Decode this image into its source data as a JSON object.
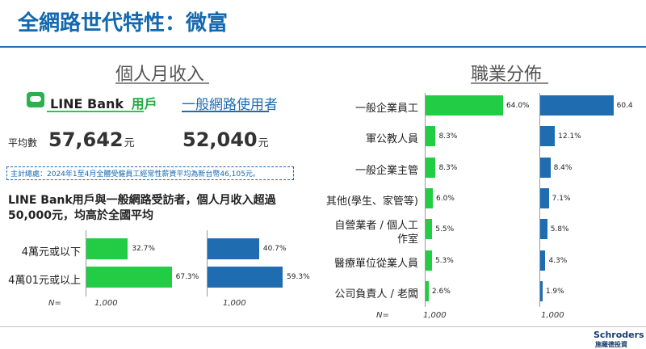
{
  "page": {
    "title": "全網路世代特性：微富",
    "left_section_title": "個人月收入",
    "right_section_title": "職業分佈",
    "line_bank_label": "LINE Bank",
    "line_bank_suffix": "用戶",
    "general_users_label": "一般網路使用者",
    "avg_label": "平均數",
    "line_bank_avg": "57,642",
    "general_avg": "52,040",
    "unit": "元",
    "note": "主計總處：2024年1至4月全體受僱員工經常性薪資平均為新台幣46,105元。",
    "summary": "LINE  Bank用戶與一般網路受訪者，個人月收入超過50,000元，均高於全國平均",
    "n_prefix": "N=",
    "n_line_bank": "1,000",
    "n_general": "1,000",
    "logo_en": "Schroders",
    "logo_zh": "施羅德投資"
  },
  "colors": {
    "line_bank": "#22cc44",
    "general": "#1f6cb0",
    "title": "#1368b0"
  },
  "chart_data": [
    {
      "type": "bar",
      "orientation": "horizontal",
      "categories": [
        "4萬元或以下",
        "4萬01元或以上"
      ],
      "series": [
        {
          "values": [
            32.7,
            67.3
          ],
          "labels": [
            "32.7%",
            "67.3%"
          ],
          "color": "#22cc44"
        },
        {
          "values": [
            40.7,
            59.3
          ],
          "labels": [
            "40.7%",
            "59.3%"
          ],
          "color": "#1f6cb0"
        }
      ]
    },
    {
      "type": "bar",
      "orientation": "horizontal",
      "categories": [
        "一般企業員工",
        "軍公教人員",
        "一般企業主管",
        "其他(學生、家管等)",
        "自營業者 / 個人工作室",
        "醫療單位從業人員",
        "公司負責人 / 老闆"
      ],
      "category_lines": [
        [
          "一般企業員工"
        ],
        [
          "軍公教人員"
        ],
        [
          "一般企業主管"
        ],
        [
          "其他(學生、家管等)"
        ],
        [
          "自營業者 / 個人工",
          "作室"
        ],
        [
          "醫療單位從業人員"
        ],
        [
          "公司負責人 / 老闆"
        ]
      ],
      "series": [
        {
          "values": [
            64.0,
            8.3,
            8.3,
            6.0,
            5.5,
            5.3,
            2.6
          ],
          "labels": [
            "64.0%",
            "8.3%",
            "8.3%",
            "6.0%",
            "5.5%",
            "5.3%",
            "2.6%"
          ],
          "color": "#22cc44"
        },
        {
          "values": [
            60.4,
            12.1,
            8.4,
            7.1,
            5.8,
            4.3,
            1.9
          ],
          "labels": [
            "60.4",
            "12.1%",
            "8.4%",
            "7.1%",
            "5.8%",
            "4.3%",
            "1.9%"
          ],
          "color": "#1f6cb0"
        }
      ]
    }
  ]
}
